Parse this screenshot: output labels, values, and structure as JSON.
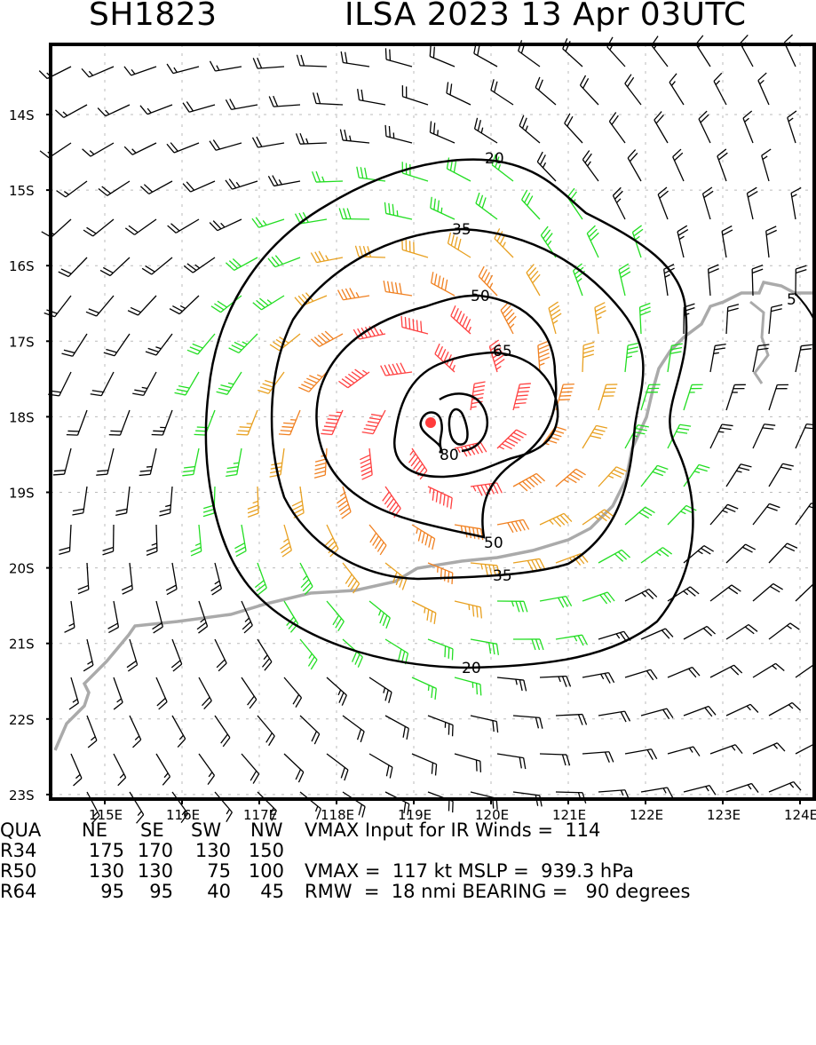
{
  "header": {
    "storm_id": "SH1823",
    "storm_title": "ILSA 2023 13 Apr 03UTC"
  },
  "axes": {
    "lat_labels": [
      "14S",
      "15S",
      "16S",
      "17S",
      "18S",
      "19S",
      "20S",
      "21S",
      "22S",
      "23S"
    ],
    "lon_labels": [
      "115E",
      "116E",
      "117E",
      "118E",
      "119E",
      "120E",
      "121E",
      "122E",
      "123E",
      "124E"
    ]
  },
  "contours": {
    "labels": [
      "20",
      "35",
      "50",
      "65",
      "80",
      "20",
      "35",
      "50",
      "5"
    ]
  },
  "center": {
    "lat": -18.1,
    "lon": 119.3,
    "color": "#ff3b3b"
  },
  "colors": {
    "calm": "#000000",
    "gale": "#22dd22",
    "storm": "#e8a020",
    "strong": "#f08020",
    "hurricane": "#ff4040",
    "coast": "#aaaaaa"
  },
  "table": {
    "header": [
      "QUA",
      "NE",
      "SE",
      "SW",
      "NW"
    ],
    "rows": [
      [
        "R34",
        "175",
        "170",
        "130",
        "150"
      ],
      [
        "R50",
        "130",
        "130",
        "75",
        "100"
      ],
      [
        "R64",
        "95",
        "95",
        "40",
        "45"
      ]
    ]
  },
  "stats": {
    "vmax_ir": "VMAX Input for IR Winds =  114",
    "vmax_mslp": "VMAX =  117 kt MSLP =  939.3 hPa",
    "rmw_bearing": "RMW  =  18 nmi BEARING =   90 degrees"
  }
}
